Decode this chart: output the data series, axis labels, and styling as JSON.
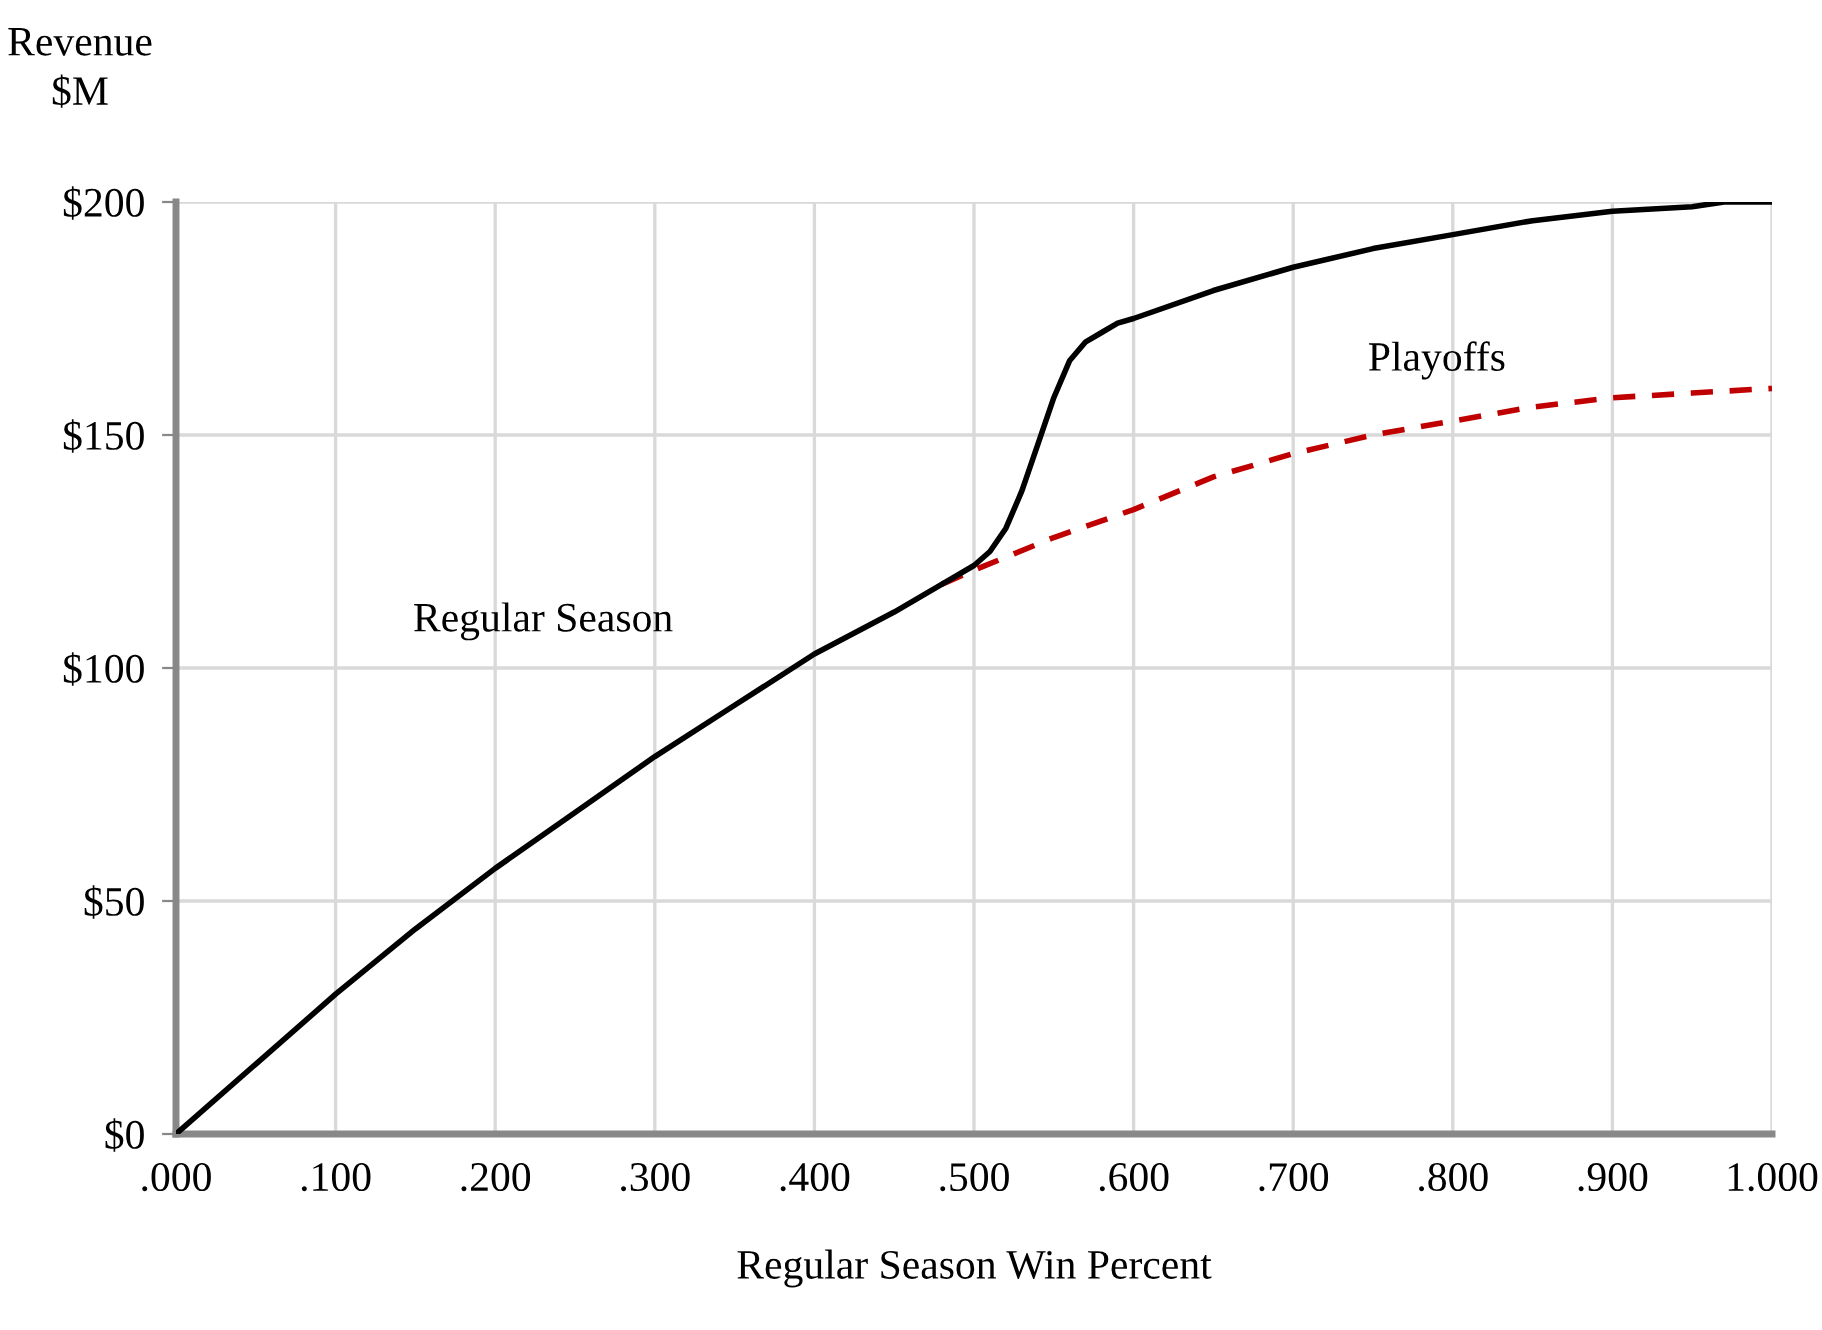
{
  "chart_data": {
    "type": "line",
    "xlabel": "Regular Season Win Percent",
    "ylabel": "Revenue\n$M",
    "series": [
      {
        "color": "#c00000",
        "line_style": "dashed",
        "x": [
          0.48,
          0.5,
          0.55,
          0.6,
          0.65,
          0.7,
          0.75,
          0.8,
          0.85,
          0.9,
          0.95,
          1.0
        ],
        "values": [
          118,
          121,
          128,
          134,
          141,
          146,
          150,
          153,
          156,
          158,
          159,
          160
        ]
      },
      {
        "color": "#000000",
        "line_style": "solid",
        "x": [
          0,
          0.05,
          0.1,
          0.15,
          0.2,
          0.25,
          0.3,
          0.35,
          0.4,
          0.45,
          0.48,
          0.5,
          0.51,
          0.52,
          0.53,
          0.54,
          0.55,
          0.56,
          0.57,
          0.58,
          0.59,
          0.6,
          0.65,
          0.7,
          0.75,
          0.8,
          0.85,
          0.9,
          0.95,
          0.97,
          1.0
        ],
        "values": [
          0,
          15,
          30,
          44,
          57,
          69,
          81,
          92,
          103,
          112,
          118,
          122,
          125,
          130,
          138,
          148,
          158,
          166,
          170,
          172,
          174,
          175,
          181,
          186,
          190,
          193,
          196,
          198,
          199,
          200,
          200
        ]
      }
    ],
    "annotations": [
      "Regular Season",
      "Playoffs"
    ],
    "xlim": [
      0,
      1
    ],
    "ylim": [
      0,
      200
    ],
    "xticks": [
      {
        "value": 0,
        "label": ".000"
      },
      {
        "value": 0.1,
        "label": ".100"
      },
      {
        "value": 0.2,
        "label": ".200"
      },
      {
        "value": 0.3,
        "label": ".300"
      },
      {
        "value": 0.4,
        "label": ".400"
      },
      {
        "value": 0.5,
        "label": ".500"
      },
      {
        "value": 0.6,
        "label": ".600"
      },
      {
        "value": 0.7,
        "label": ".700"
      },
      {
        "value": 0.8,
        "label": ".800"
      },
      {
        "value": 0.9,
        "label": ".900"
      },
      {
        "value": 1.0,
        "label": "1.000"
      }
    ],
    "yticks": [
      {
        "value": 0,
        "label": "$0"
      },
      {
        "value": 50,
        "label": "$50"
      },
      {
        "value": 100,
        "label": "$100"
      },
      {
        "value": 150,
        "label": "$150"
      },
      {
        "value": 200,
        "label": "$200"
      }
    ],
    "grid": true,
    "marker": "none"
  }
}
